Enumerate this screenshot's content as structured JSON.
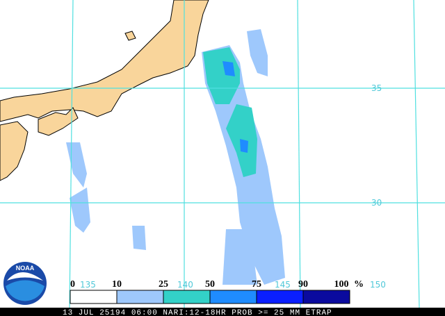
{
  "map": {
    "latitude_labels": [
      "35",
      "30"
    ],
    "longitude_labels": [
      "135",
      "140",
      "145",
      "150"
    ],
    "legend": {
      "labels": [
        "0",
        "10",
        "25",
        "50",
        "75",
        "90",
        "100"
      ],
      "unit": "%",
      "colors": [
        "#ffffff",
        "#9ec8fc",
        "#33d1c8",
        "#1f8cff",
        "#0a1fff",
        "#0a0a9e"
      ]
    },
    "footer": "13 JUL 25194 06:00 NARI:12-18HR PROB >= 25 MM ETRAP",
    "logo": "NOAA"
  }
}
